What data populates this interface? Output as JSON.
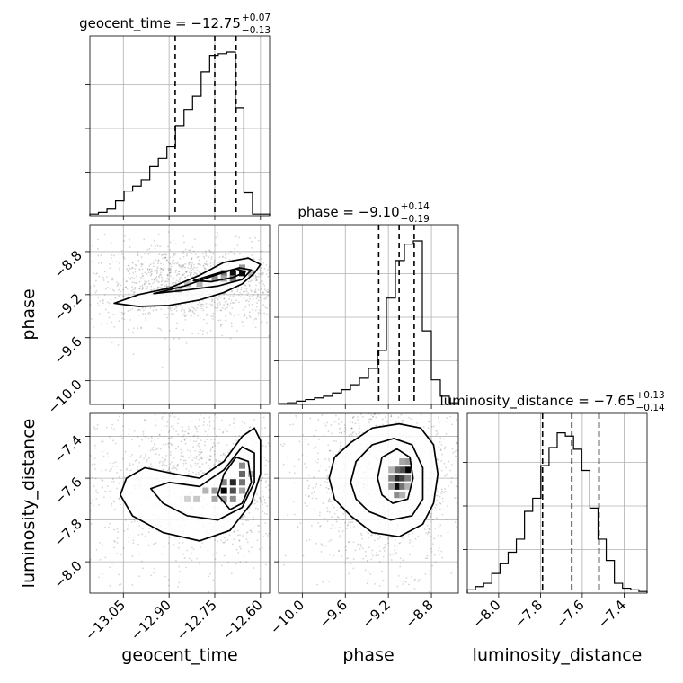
{
  "chart_data": {
    "type": "corner",
    "parameters": [
      {
        "name": "geocent_time",
        "axis_label": "geocent_time",
        "title_main": "geocent_time = −12.75",
        "title_plus": "+0.07",
        "title_minus": "−0.13",
        "median": -12.75,
        "err_plus": 0.07,
        "err_minus": 0.13,
        "quantiles": [
          -12.88,
          -12.75,
          -12.68
        ],
        "range": [
          -13.16,
          -12.57
        ],
        "ticks": [
          -13.05,
          -12.9,
          -12.75,
          -12.6
        ],
        "tick_labels": [
          "−13.05",
          "−12.90",
          "−12.75",
          "−12.60"
        ],
        "hist": [
          0.01,
          0.02,
          0.04,
          0.09,
          0.15,
          0.18,
          0.22,
          0.3,
          0.35,
          0.42,
          0.55,
          0.65,
          0.73,
          0.88,
          0.98,
          0.99,
          1.0,
          0.66,
          0.14,
          0.01,
          0.01
        ]
      },
      {
        "name": "phase",
        "axis_label": "phase",
        "title_main": "phase = −9.10",
        "title_plus": "+0.14",
        "title_minus": "−0.19",
        "median": -9.1,
        "err_plus": 0.14,
        "err_minus": 0.19,
        "quantiles": [
          -9.29,
          -9.1,
          -8.96
        ],
        "range": [
          -10.22,
          -8.55
        ],
        "ticks": [
          -10.0,
          -9.6,
          -9.2,
          -8.8
        ],
        "tick_labels": [
          "−10.0",
          "−9.6",
          "−9.2",
          "−8.8"
        ],
        "hist": [
          0.005,
          0.01,
          0.02,
          0.03,
          0.04,
          0.05,
          0.07,
          0.09,
          0.12,
          0.16,
          0.22,
          0.33,
          0.65,
          0.88,
          0.98,
          1.0,
          0.45,
          0.15,
          0.05,
          0.01
        ]
      },
      {
        "name": "luminosity_distance",
        "axis_label": "luminosity_distance",
        "title_main": "luminosity_distance = −7.65",
        "title_plus": "+0.13",
        "title_minus": "−0.14",
        "median": -7.65,
        "err_plus": 0.13,
        "err_minus": 0.14,
        "quantiles": [
          -7.79,
          -7.65,
          -7.52
        ],
        "range": [
          -8.15,
          -7.29
        ],
        "ticks": [
          -8.0,
          -7.8,
          -7.6,
          -7.4
        ],
        "tick_labels": [
          "−8.0",
          "−7.8",
          "−7.6",
          "−7.4"
        ],
        "hist": [
          0.02,
          0.04,
          0.06,
          0.12,
          0.18,
          0.25,
          0.33,
          0.5,
          0.58,
          0.78,
          0.89,
          0.98,
          0.96,
          0.88,
          0.75,
          0.52,
          0.33,
          0.2,
          0.06,
          0.03,
          0.02,
          0.01
        ]
      }
    ],
    "pairs": [
      {
        "x": "geocent_time",
        "y": "phase",
        "contours": [
          [
            [
              -13.08,
              -9.28
            ],
            [
              -13.0,
              -9.2
            ],
            [
              -12.9,
              -9.14
            ],
            [
              -12.8,
              -9.02
            ],
            [
              -12.72,
              -8.9
            ],
            [
              -12.64,
              -8.86
            ],
            [
              -12.6,
              -8.92
            ],
            [
              -12.62,
              -9.0
            ],
            [
              -12.66,
              -9.1
            ],
            [
              -12.72,
              -9.18
            ],
            [
              -12.8,
              -9.25
            ],
            [
              -12.9,
              -9.3
            ],
            [
              -13.0,
              -9.31
            ]
          ],
          [
            [
              -12.95,
              -9.19
            ],
            [
              -12.85,
              -9.12
            ],
            [
              -12.75,
              -9.02
            ],
            [
              -12.67,
              -8.95
            ],
            [
              -12.63,
              -8.97
            ],
            [
              -12.66,
              -9.06
            ],
            [
              -12.74,
              -9.12
            ],
            [
              -12.85,
              -9.16
            ]
          ],
          [
            [
              -12.82,
              -9.07
            ],
            [
              -12.74,
              -9.0
            ],
            [
              -12.68,
              -8.96
            ],
            [
              -12.65,
              -8.99
            ],
            [
              -12.69,
              -9.04
            ],
            [
              -12.76,
              -9.08
            ]
          ]
        ],
        "cells": [
          {
            "x": -12.69,
            "y": -9.0,
            "v": 0.95
          },
          {
            "x": -12.66,
            "y": -9.0,
            "v": 0.95
          },
          {
            "x": -12.72,
            "y": -9.0,
            "v": 0.55
          },
          {
            "x": -12.69,
            "y": -9.05,
            "v": 0.5
          },
          {
            "x": -12.75,
            "y": -9.05,
            "v": 0.45
          },
          {
            "x": -12.66,
            "y": -8.95,
            "v": 0.4
          },
          {
            "x": -12.9,
            "y": -9.15,
            "v": 0.4
          },
          {
            "x": -12.87,
            "y": -9.15,
            "v": 0.35
          },
          {
            "x": -12.8,
            "y": -9.1,
            "v": 0.3
          },
          {
            "x": -12.84,
            "y": -9.1,
            "v": 0.25
          },
          {
            "x": -12.72,
            "y": -9.05,
            "v": 0.35
          },
          {
            "x": -12.63,
            "y": -9.0,
            "v": 0.3
          }
        ]
      },
      {
        "x": "geocent_time",
        "y": "luminosity_distance",
        "contours": [
          [
            [
              -13.06,
              -7.68
            ],
            [
              -13.04,
              -7.6
            ],
            [
              -12.98,
              -7.55
            ],
            [
              -12.88,
              -7.58
            ],
            [
              -12.8,
              -7.6
            ],
            [
              -12.72,
              -7.52
            ],
            [
              -12.66,
              -7.4
            ],
            [
              -12.62,
              -7.36
            ],
            [
              -12.6,
              -7.42
            ],
            [
              -12.6,
              -7.58
            ],
            [
              -12.63,
              -7.72
            ],
            [
              -12.7,
              -7.85
            ],
            [
              -12.8,
              -7.9
            ],
            [
              -12.92,
              -7.86
            ],
            [
              -13.02,
              -7.78
            ]
          ],
          [
            [
              -12.96,
              -7.65
            ],
            [
              -12.9,
              -7.62
            ],
            [
              -12.8,
              -7.64
            ],
            [
              -12.72,
              -7.56
            ],
            [
              -12.66,
              -7.45
            ],
            [
              -12.62,
              -7.48
            ],
            [
              -12.62,
              -7.62
            ],
            [
              -12.66,
              -7.74
            ],
            [
              -12.74,
              -7.8
            ],
            [
              -12.84,
              -7.78
            ],
            [
              -12.92,
              -7.72
            ]
          ],
          [
            [
              -12.74,
              -7.68
            ],
            [
              -12.72,
              -7.58
            ],
            [
              -12.68,
              -7.5
            ],
            [
              -12.64,
              -7.52
            ],
            [
              -12.63,
              -7.62
            ],
            [
              -12.66,
              -7.72
            ],
            [
              -12.7,
              -7.75
            ]
          ]
        ],
        "cells": [
          {
            "x": -12.72,
            "y": -7.66,
            "v": 1.0
          },
          {
            "x": -12.69,
            "y": -7.62,
            "v": 0.85
          },
          {
            "x": -12.69,
            "y": -7.66,
            "v": 0.7
          },
          {
            "x": -12.66,
            "y": -7.58,
            "v": 0.6
          },
          {
            "x": -12.66,
            "y": -7.62,
            "v": 0.55
          },
          {
            "x": -12.72,
            "y": -7.62,
            "v": 0.5
          },
          {
            "x": -12.69,
            "y": -7.7,
            "v": 0.45
          },
          {
            "x": -12.66,
            "y": -7.54,
            "v": 0.45
          },
          {
            "x": -12.75,
            "y": -7.66,
            "v": 0.4
          },
          {
            "x": -12.75,
            "y": -7.7,
            "v": 0.35
          },
          {
            "x": -12.66,
            "y": -7.66,
            "v": 0.35
          },
          {
            "x": -12.78,
            "y": -7.66,
            "v": 0.3
          },
          {
            "x": -12.72,
            "y": -7.7,
            "v": 0.4
          },
          {
            "x": -12.63,
            "y": -7.58,
            "v": 0.3
          },
          {
            "x": -12.81,
            "y": -7.7,
            "v": 0.22
          },
          {
            "x": -12.84,
            "y": -7.7,
            "v": 0.18
          }
        ]
      },
      {
        "x": "phase",
        "y": "luminosity_distance",
        "contours": [
          [
            [
              -9.75,
              -7.6
            ],
            [
              -9.7,
              -7.5
            ],
            [
              -9.55,
              -7.43
            ],
            [
              -9.35,
              -7.36
            ],
            [
              -9.1,
              -7.34
            ],
            [
              -8.9,
              -7.36
            ],
            [
              -8.78,
              -7.44
            ],
            [
              -8.74,
              -7.58
            ],
            [
              -8.78,
              -7.72
            ],
            [
              -8.88,
              -7.82
            ],
            [
              -9.1,
              -7.88
            ],
            [
              -9.35,
              -7.86
            ],
            [
              -9.55,
              -7.78
            ],
            [
              -9.7,
              -7.7
            ]
          ],
          [
            [
              -9.55,
              -7.62
            ],
            [
              -9.5,
              -7.52
            ],
            [
              -9.35,
              -7.44
            ],
            [
              -9.15,
              -7.41
            ],
            [
              -8.98,
              -7.44
            ],
            [
              -8.88,
              -7.55
            ],
            [
              -8.88,
              -7.7
            ],
            [
              -8.98,
              -7.78
            ],
            [
              -9.18,
              -7.8
            ],
            [
              -9.38,
              -7.76
            ],
            [
              -9.5,
              -7.7
            ]
          ],
          [
            [
              -9.3,
              -7.6
            ],
            [
              -9.26,
              -7.5
            ],
            [
              -9.12,
              -7.46
            ],
            [
              -9.0,
              -7.5
            ],
            [
              -8.97,
              -7.6
            ],
            [
              -9.02,
              -7.7
            ],
            [
              -9.16,
              -7.72
            ],
            [
              -9.26,
              -7.68
            ]
          ]
        ],
        "cells": [
          {
            "x": -9.02,
            "y": -7.56,
            "v": 1.0
          },
          {
            "x": -9.12,
            "y": -7.64,
            "v": 0.95
          },
          {
            "x": -9.12,
            "y": -7.6,
            "v": 0.85
          },
          {
            "x": -9.07,
            "y": -7.6,
            "v": 0.75
          },
          {
            "x": -9.07,
            "y": -7.56,
            "v": 0.7
          },
          {
            "x": -9.12,
            "y": -7.56,
            "v": 0.6
          },
          {
            "x": -9.17,
            "y": -7.6,
            "v": 0.5
          },
          {
            "x": -9.07,
            "y": -7.64,
            "v": 0.55
          },
          {
            "x": -9.02,
            "y": -7.6,
            "v": 0.5
          },
          {
            "x": -9.12,
            "y": -7.68,
            "v": 0.45
          },
          {
            "x": -9.02,
            "y": -7.52,
            "v": 0.4
          },
          {
            "x": -9.17,
            "y": -7.64,
            "v": 0.4
          },
          {
            "x": -9.07,
            "y": -7.52,
            "v": 0.35
          },
          {
            "x": -9.17,
            "y": -7.56,
            "v": 0.3
          },
          {
            "x": -9.02,
            "y": -7.64,
            "v": 0.3
          },
          {
            "x": -9.07,
            "y": -7.68,
            "v": 0.3
          }
        ]
      }
    ]
  }
}
